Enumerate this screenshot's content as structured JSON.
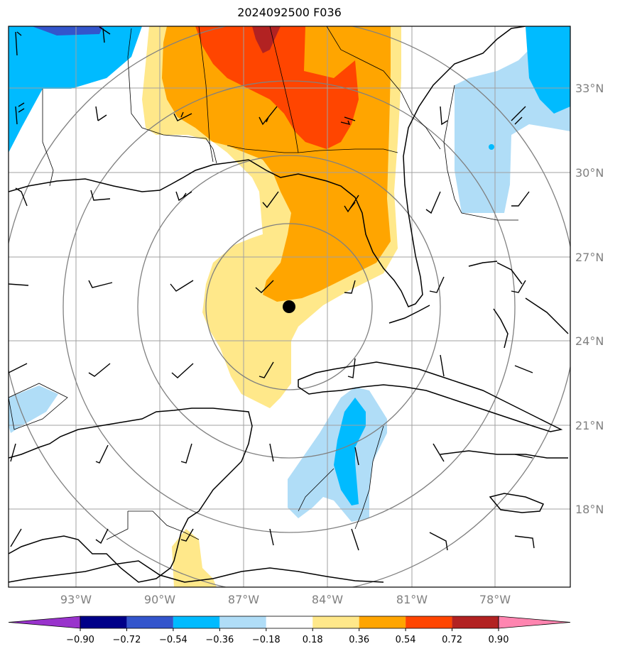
{
  "title": "2024092500 F036",
  "lat_labels": [
    "33°N",
    "30°N",
    "27°N",
    "24°N",
    "21°N",
    "18°N"
  ],
  "lon_labels": [
    "93°W",
    "90°W",
    "87°W",
    "84°W",
    "81°W",
    "78°W"
  ],
  "colorbar": {
    "ticks": [
      "−0.90",
      "−0.72",
      "−0.54",
      "−0.36",
      "−0.18",
      "0.18",
      "0.36",
      "0.54",
      "0.72",
      "0.90"
    ],
    "colors": [
      "#9933cc",
      "#000088",
      "#3355cc",
      "#00bbff",
      "#b0ddf7",
      "#ffffff",
      "#ffe88a",
      "#ffa500",
      "#ff4500",
      "#b22222",
      "#ff85b0"
    ]
  },
  "center_marker": "storm-center"
}
